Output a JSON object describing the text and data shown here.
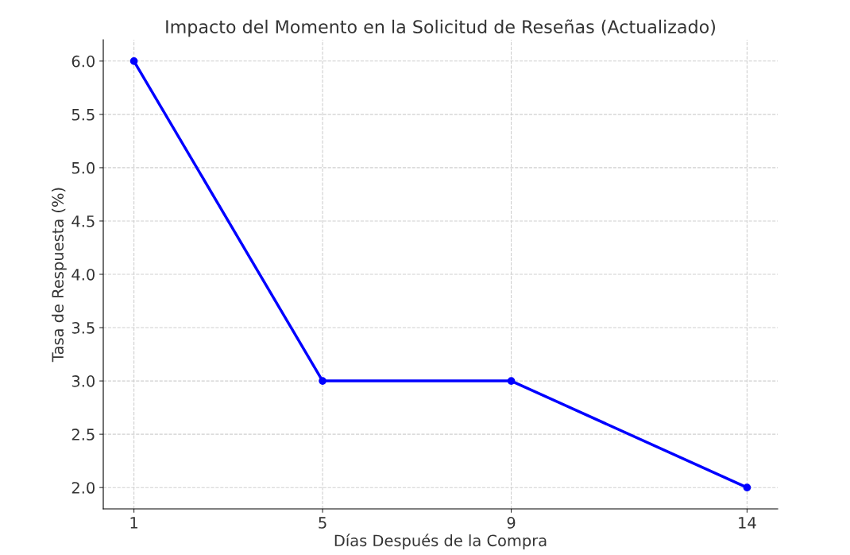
{
  "chart_data": {
    "type": "line",
    "title": "Impacto del Momento en la Solicitud de Reseñas (Actualizado)",
    "xlabel": "Días Después de la Compra",
    "ylabel": "Tasa de Respuesta (%)",
    "x": [
      1,
      5,
      9,
      14
    ],
    "series": [
      {
        "color": "#0000ff",
        "values": [
          6.0,
          3.0,
          3.0,
          2.0
        ]
      }
    ],
    "xlim": [
      0.35,
      14.65
    ],
    "xticks": [
      1,
      5,
      9,
      14
    ],
    "ylim": [
      1.8,
      6.2
    ],
    "yticks": [
      {
        "value": 2.0,
        "label": "2.0"
      },
      {
        "value": 2.5,
        "label": "2.5"
      },
      {
        "value": 3.0,
        "label": "3.0"
      },
      {
        "value": 3.5,
        "label": "3.5"
      },
      {
        "value": 4.0,
        "label": "4.0"
      },
      {
        "value": 4.5,
        "label": "4.5"
      },
      {
        "value": 5.0,
        "label": "5.0"
      },
      {
        "value": 5.5,
        "label": "5.5"
      },
      {
        "value": 6.0,
        "label": "6.0"
      }
    ],
    "grid": true,
    "marker": "circle",
    "line_style": "solid",
    "legend": false
  }
}
